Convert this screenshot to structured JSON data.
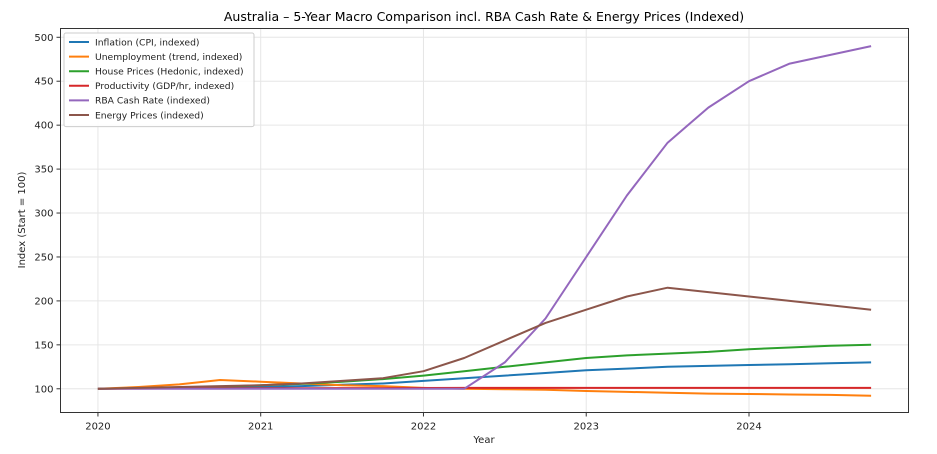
{
  "chart_data": {
    "type": "line",
    "title": "Australia – 5-Year Macro Comparison incl. RBA Cash Rate & Energy Prices (Indexed)",
    "xlabel": "Year",
    "ylabel": "Index (Start = 100)",
    "xlim": [
      2019.77,
      2024.98
    ],
    "ylim": [
      73,
      510
    ],
    "xticks": [
      2020,
      2021,
      2022,
      2023,
      2024
    ],
    "xtick_labels": [
      "2020",
      "2021",
      "2022",
      "2023",
      "2024"
    ],
    "yticks": [
      100,
      150,
      200,
      250,
      300,
      350,
      400,
      450,
      500
    ],
    "ytick_labels": [
      "100",
      "150",
      "200",
      "250",
      "300",
      "350",
      "400",
      "450",
      "500"
    ],
    "grid": true,
    "legend_position": "top-left",
    "x": [
      2020,
      2020.25,
      2020.5,
      2020.75,
      2021,
      2021.25,
      2021.5,
      2021.75,
      2022,
      2022.25,
      2022.5,
      2022.75,
      2023,
      2023.25,
      2023.5,
      2023.75,
      2024,
      2024.25,
      2024.5,
      2024.75
    ],
    "series": [
      {
        "name": "Inflation (CPI, indexed)",
        "color": "#1f77b4",
        "values": [
          100,
          100.5,
          101,
          101.5,
          102,
          103,
          104.5,
          106,
          109,
          112,
          115,
          118,
          121,
          123,
          125,
          126,
          127,
          128,
          129,
          130
        ]
      },
      {
        "name": "Unemployment (trend, indexed)",
        "color": "#ff7f0e",
        "values": [
          100,
          102,
          105,
          110,
          108,
          106,
          104,
          103,
          101,
          100,
          99.5,
          99,
          97.5,
          96.5,
          95.5,
          94.5,
          94,
          93.5,
          93,
          92
        ]
      },
      {
        "name": "House Prices (Hedonic, indexed)",
        "color": "#2ca02c",
        "values": [
          100,
          100.5,
          101.5,
          102.5,
          104,
          105.5,
          108,
          111,
          115,
          120,
          125,
          130,
          135,
          138,
          140,
          142,
          145,
          147,
          149,
          150
        ]
      },
      {
        "name": "Productivity (GDP/hr, indexed)",
        "color": "#d62728",
        "values": [
          100,
          100.2,
          100.4,
          100.5,
          100.6,
          100.7,
          100.8,
          100.8,
          100.9,
          101,
          101,
          101,
          101,
          101,
          101,
          101,
          101,
          101,
          101,
          101
        ]
      },
      {
        "name": "RBA Cash Rate (indexed)",
        "color": "#9467bd",
        "values": [
          100,
          100,
          100,
          100,
          100,
          100,
          100,
          100,
          100,
          100,
          130,
          180,
          250,
          320,
          380,
          420,
          450,
          470,
          480,
          490
        ]
      },
      {
        "name": "Energy Prices (indexed)",
        "color": "#8c564b",
        "values": [
          100,
          101,
          102,
          103,
          104,
          106,
          109,
          112,
          120,
          135,
          155,
          175,
          190,
          205,
          215,
          210,
          205,
          200,
          195,
          190
        ]
      }
    ]
  }
}
